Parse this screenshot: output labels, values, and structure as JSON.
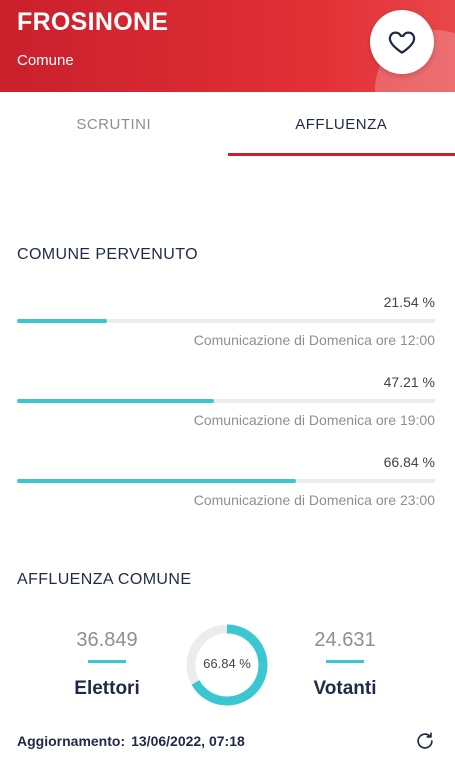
{
  "header": {
    "title": "FROSINONE",
    "subtitle": "Comune",
    "favorite_icon": "heart-outline-icon",
    "bg_color": "#d8282f"
  },
  "tabs": [
    {
      "label": "SCRUTINI",
      "active": false
    },
    {
      "label": "AFFLUENZA",
      "active": true
    }
  ],
  "section_pervenuto": {
    "title": "COMUNE PERVENUTO",
    "rows": [
      {
        "percent_label": "21.54 %",
        "value": 21.54,
        "caption": "Comunicazione di Domenica ore 12:00"
      },
      {
        "percent_label": "47.21 %",
        "value": 47.21,
        "caption": "Comunicazione di Domenica ore 19:00"
      },
      {
        "percent_label": "66.84 %",
        "value": 66.84,
        "caption": "Comunicazione di Domenica ore 23:00"
      }
    ]
  },
  "section_affluenza": {
    "title": "AFFLUENZA COMUNE",
    "elettori": {
      "value": "36.849",
      "label": "Elettori"
    },
    "votanti": {
      "value": "24.631",
      "label": "Votanti"
    },
    "donut": {
      "percent_label": "66.84 %",
      "value": 66.84
    }
  },
  "footer": {
    "label": "Aggiornamento:",
    "value": "13/06/2022, 07:18",
    "refresh_icon": "refresh-icon"
  },
  "colors": {
    "accent": "#3bc7d2",
    "brand": "#c9202c",
    "text": "#1f2a44",
    "muted": "#8a8f98"
  }
}
